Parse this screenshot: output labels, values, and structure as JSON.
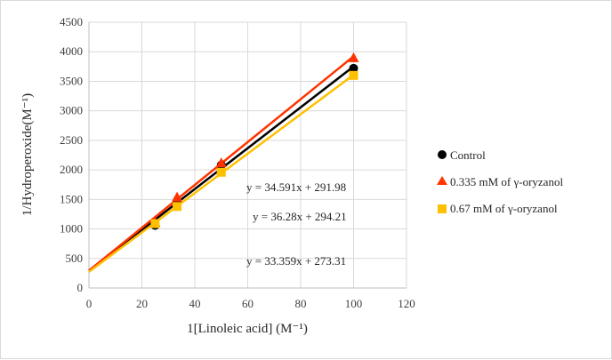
{
  "chart_data": {
    "type": "scatter",
    "title": "",
    "xlabel": "1[Linoleic acid] (M⁻¹)",
    "ylabel": "1/Hydroperoxide(M⁻¹)",
    "xlim": [
      0,
      120
    ],
    "ylim": [
      0,
      4500
    ],
    "x_ticks": [
      "0",
      "20",
      "40",
      "60",
      "80",
      "100",
      "120"
    ],
    "y_ticks": [
      "0",
      "500",
      "1000",
      "1500",
      "2000",
      "2500",
      "3000",
      "3500",
      "4000",
      "4500"
    ],
    "grid": true,
    "legend_position": "right",
    "series": [
      {
        "name": "Control",
        "marker": "circle",
        "color": "#000000",
        "x": [
          25,
          33.3,
          50,
          100
        ],
        "y": [
          1060,
          1430,
          2080,
          3720
        ],
        "trendline": {
          "slope": 34.591,
          "intercept": 291.98
        }
      },
      {
        "name": "0.335 mM of γ-oryzanol",
        "marker": "triangle",
        "color": "#ff3300",
        "x": [
          25,
          33.3,
          50,
          100
        ],
        "y": [
          1110,
          1540,
          2120,
          3900
        ],
        "trendline": {
          "slope": 36.28,
          "intercept": 294.21
        }
      },
      {
        "name": "0.67 mM of γ-oryzanol",
        "marker": "square",
        "color": "#ffc000",
        "x": [
          25,
          33.3,
          50,
          100
        ],
        "y": [
          1090,
          1380,
          1960,
          3600
        ],
        "trendline": {
          "slope": 33.359,
          "intercept": 273.31
        }
      }
    ],
    "annotations": [
      "y = 34.591x + 291.98",
      "y = 36.28x + 294.21",
      "y = 33.359x + 273.31"
    ]
  }
}
